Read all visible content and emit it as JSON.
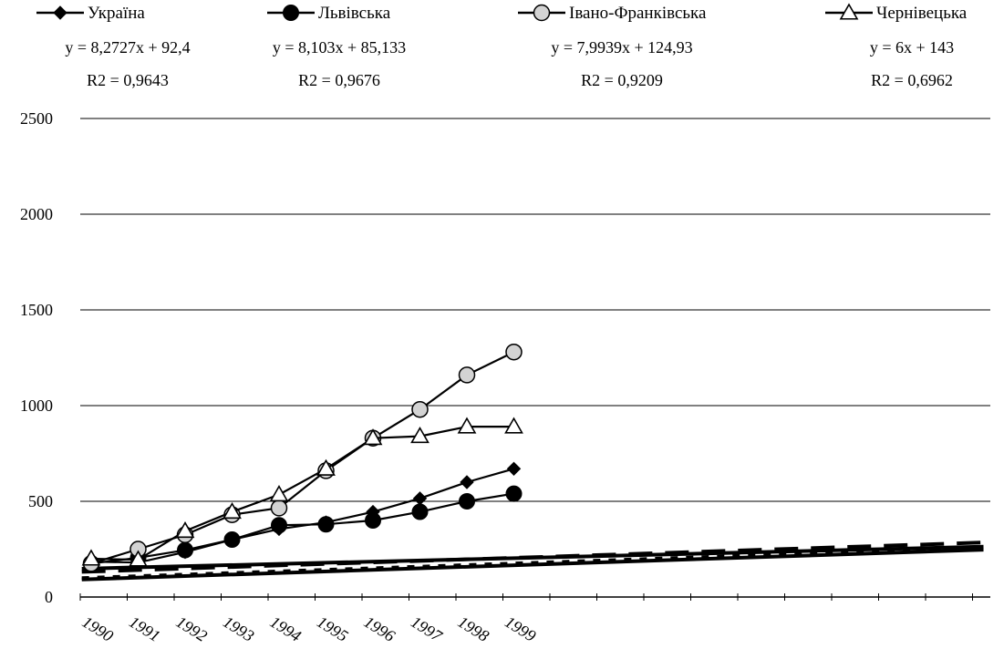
{
  "chart_data": {
    "type": "line",
    "x": [
      1,
      2,
      3,
      4,
      5,
      6,
      7,
      8,
      9,
      10
    ],
    "xtick_labels": [
      "1990",
      "1991",
      "1992",
      "1993",
      "1994",
      "1995",
      "1996",
      "1997",
      "1998",
      "1999"
    ],
    "ylim": [
      0,
      2500
    ],
    "yticks": [
      "0",
      "500",
      "1000",
      "1500",
      "2000",
      "2500"
    ],
    "grid": "horizontal",
    "legend_position": "top",
    "series": [
      {
        "name": "Україна",
        "marker": "diamond",
        "values": [
          185,
          180,
          235,
          300,
          355,
          390,
          445,
          515,
          600,
          670
        ],
        "trendline": {
          "slope": 8.2727,
          "intercept": 92.4,
          "style": "dotted"
        },
        "equation": "y = 8,2727x + 92,4",
        "r2": "R2 = 0,9643"
      },
      {
        "name": "Львівська",
        "marker": "circle-filled",
        "values": [
          175,
          205,
          245,
          300,
          375,
          380,
          400,
          445,
          500,
          540
        ],
        "trendline": {
          "slope": 8.103,
          "intercept": 85.133,
          "style": "solid"
        },
        "equation": "y = 8,103x + 85,133",
        "r2": "R2 = 0,9676"
      },
      {
        "name": "Івано-Франківська",
        "marker": "circle-hollow",
        "values": [
          175,
          250,
          325,
          430,
          465,
          660,
          830,
          980,
          1160,
          1280
        ],
        "trendline": {
          "slope": 7.9939,
          "intercept": 124.93,
          "style": "dashed"
        },
        "equation": "y = 7,9939x + 124,93",
        "r2": "R2 = 0,9209"
      },
      {
        "name": "Чернівецька",
        "marker": "triangle-hollow",
        "values": [
          200,
          195,
          345,
          445,
          535,
          670,
          830,
          840,
          890,
          890
        ],
        "trendline": {
          "slope": 6,
          "intercept": 143,
          "style": "solid"
        },
        "equation": "y = 6x + 143",
        "r2": "R2 = 0,6962"
      }
    ]
  },
  "colors": {
    "line": "#000000",
    "hollow_fill": "#d3d3d3",
    "background": "#ffffff"
  }
}
